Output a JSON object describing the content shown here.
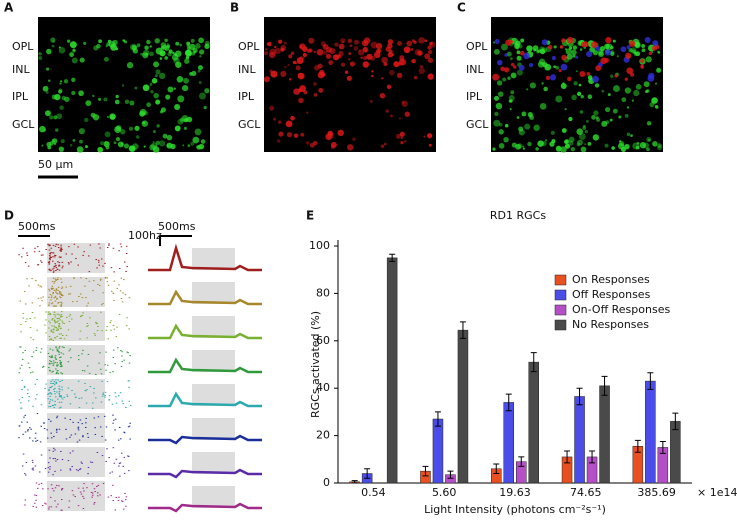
{
  "panels": {
    "a": {
      "label": "A",
      "layers": [
        "OPL",
        "INL",
        "IPL",
        "GCL"
      ],
      "scale_bar": "50 μm"
    },
    "b": {
      "label": "B",
      "layers": [
        "OPL",
        "INL",
        "IPL",
        "GCL"
      ]
    },
    "c": {
      "label": "C",
      "layers": [
        "OPL",
        "INL",
        "IPL",
        "GCL"
      ]
    },
    "d": {
      "label": "D",
      "raster_time_bar": "500ms",
      "psth_time_bar": "500ms",
      "rate_bar": "100hz",
      "row_colors": [
        "#a01e1e",
        "#a8862a",
        "#78b030",
        "#2f9a3a",
        "#2aaab0",
        "#1a2f9a",
        "#5a2aa8",
        "#a02a8a"
      ]
    },
    "e": {
      "label": "E"
    }
  },
  "chart_data": {
    "type": "bar",
    "title": "RD1 RGCs",
    "x_label": "Light Intensity (photons cm⁻²s⁻¹)",
    "y_label": "RGCs activated (%)",
    "x_unit": "× 1e14",
    "categories": [
      "0.54",
      "5.60",
      "19.63",
      "74.65",
      "385.69"
    ],
    "series": [
      {
        "name": "On Responses",
        "color": "#e8501f",
        "values": [
          0.5,
          5,
          6,
          11,
          15.5
        ],
        "errors": [
          0.5,
          2,
          2,
          2.5,
          2.5
        ]
      },
      {
        "name": "Off Responses",
        "color": "#4a4de8",
        "values": [
          4,
          27,
          34,
          36.5,
          43
        ],
        "errors": [
          2,
          3,
          3.5,
          3.5,
          3.5
        ]
      },
      {
        "name": "On-Off Responses",
        "color": "#b44fc8",
        "values": [
          0,
          3.5,
          9,
          11,
          15
        ],
        "errors": [
          0,
          1.5,
          2,
          2.5,
          2.5
        ]
      },
      {
        "name": "No Responses",
        "color": "#4a4a4a",
        "values": [
          95,
          64.5,
          51,
          41,
          26
        ],
        "errors": [
          1.5,
          3.5,
          4,
          4,
          3.5
        ]
      }
    ],
    "ylim": [
      0,
      100
    ],
    "yticks": [
      0,
      20,
      40,
      60,
      80,
      100
    ],
    "legend": "upper right"
  }
}
